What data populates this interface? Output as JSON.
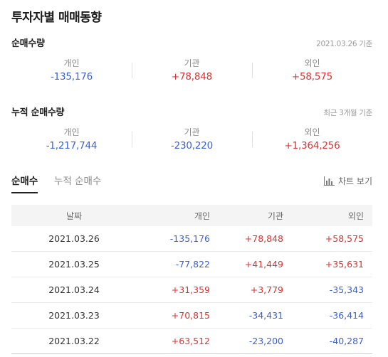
{
  "title": "투자자별 매매동향",
  "net": {
    "title": "순매수량",
    "date": "2021.03.26 기준",
    "items": [
      {
        "label": "개인",
        "value": "-135,176",
        "sign": "neg"
      },
      {
        "label": "기관",
        "value": "+78,848",
        "sign": "pos"
      },
      {
        "label": "외인",
        "value": "+58,575",
        "sign": "pos"
      }
    ]
  },
  "cumulative": {
    "title": "누적 순매수량",
    "date": "최근 3개월 기준",
    "items": [
      {
        "label": "개인",
        "value": "-1,217,744",
        "sign": "neg"
      },
      {
        "label": "기관",
        "value": "-230,220",
        "sign": "neg"
      },
      {
        "label": "외인",
        "value": "+1,364,256",
        "sign": "pos"
      }
    ]
  },
  "tabs": {
    "active": "순매수",
    "inactive": "누적 순매수",
    "chart_link": "차트 보기",
    "chart_icon": "bar-chart-icon"
  },
  "table": {
    "headers": [
      "날짜",
      "개인",
      "기관",
      "외인"
    ],
    "rows": [
      {
        "date": "2021.03.26",
        "individual": "-135,176",
        "institution": "+78,848",
        "foreign": "+58,575"
      },
      {
        "date": "2021.03.25",
        "individual": "-77,822",
        "institution": "+41,449",
        "foreign": "+35,631"
      },
      {
        "date": "2021.03.24",
        "individual": "+31,359",
        "institution": "+3,779",
        "foreign": "-35,343"
      },
      {
        "date": "2021.03.23",
        "individual": "+70,815",
        "institution": "-34,431",
        "foreign": "-36,414"
      },
      {
        "date": "2021.03.22",
        "individual": "+63,512",
        "institution": "-23,200",
        "foreign": "-40,287"
      }
    ]
  },
  "colors": {
    "positive": "#e0312f",
    "negative": "#3a5fd9"
  }
}
